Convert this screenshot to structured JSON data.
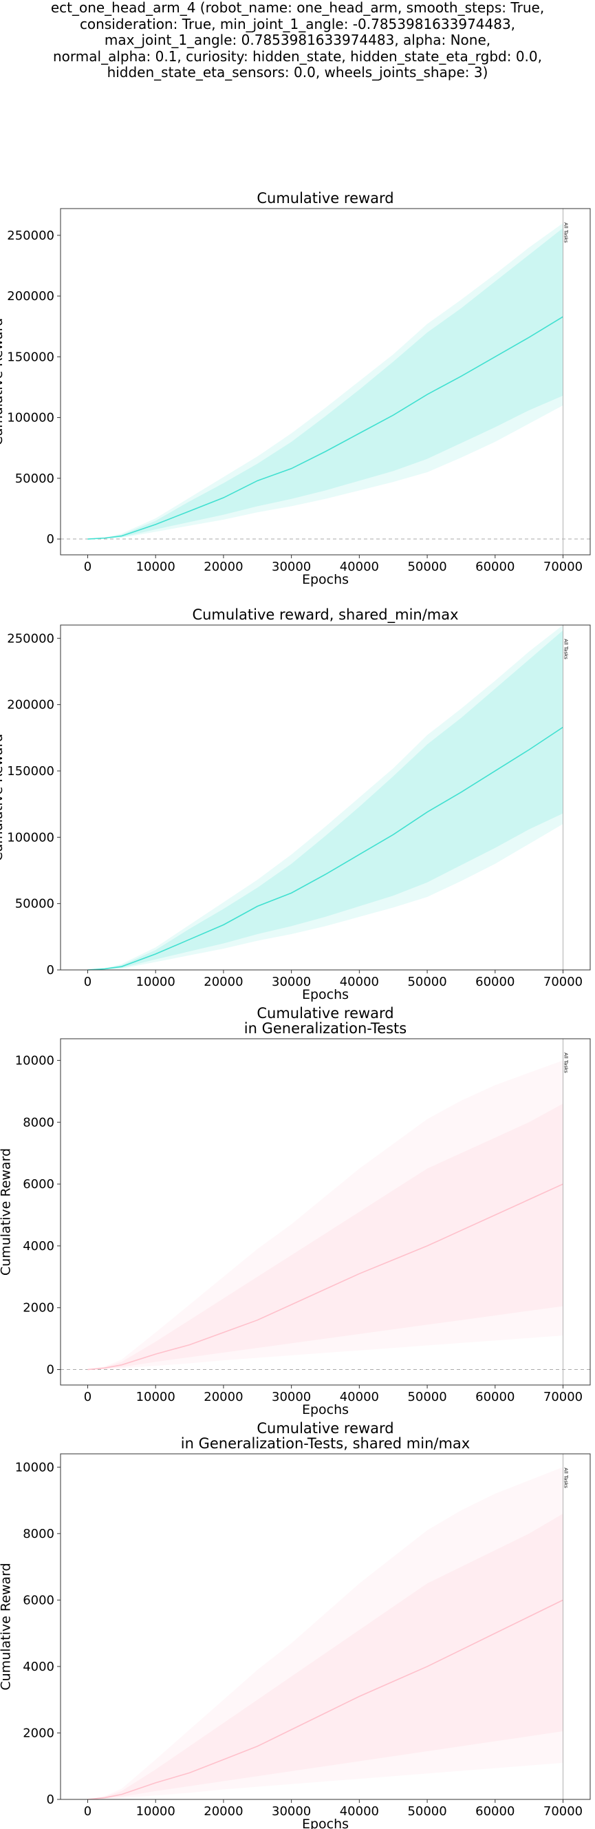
{
  "figure": {
    "header_lines": [
      "ect_one_head_arm_4 (robot_name: one_head_arm, smooth_steps: True,",
      "consideration: True, min_joint_1_angle: -0.7853981633974483,",
      "max_joint_1_angle: 0.7853981633974483, alpha: None,",
      "normal_alpha: 0.1, curiosity: hidden_state, hidden_state_eta_rgbd: 0.0,",
      "hidden_state_eta_sensors: 0.0, wheels_joints_shape: 3)"
    ]
  },
  "chart_data": [
    {
      "type": "area",
      "title_lines": [
        "Cumulative reward"
      ],
      "xlabel": "Epochs",
      "ylabel": "Cumulative Reward",
      "xlim": [
        -4000,
        74000
      ],
      "ylim": [
        -13000,
        272000
      ],
      "xticks": [
        0,
        10000,
        20000,
        30000,
        40000,
        50000,
        60000,
        70000
      ],
      "yticks": [
        0,
        50000,
        100000,
        150000,
        200000,
        250000
      ],
      "color": "#40e0d0",
      "zero_line": true,
      "vline": {
        "x": 70000,
        "label": "All Tasks"
      },
      "series": [
        {
          "x": [
            0,
            2500,
            5000,
            10000,
            15000,
            20000,
            25000,
            30000,
            35000,
            40000,
            45000,
            50000,
            55000,
            60000,
            65000,
            70000
          ],
          "mean": [
            0,
            800,
            2500,
            12000,
            23000,
            34000,
            48000,
            58000,
            72000,
            87000,
            102000,
            119000,
            134000,
            150000,
            166000,
            183000
          ],
          "inner_lower": [
            0,
            500,
            1500,
            8000,
            14000,
            20000,
            27000,
            33000,
            40000,
            48000,
            56000,
            66000,
            79000,
            92000,
            106000,
            118000
          ],
          "inner_upper": [
            0,
            1000,
            3500,
            15000,
            31000,
            46000,
            62000,
            80000,
            101000,
            123000,
            146000,
            170000,
            190000,
            212000,
            234000,
            256000
          ],
          "outer_lower": [
            0,
            300,
            1000,
            6000,
            11000,
            16000,
            22000,
            27000,
            33000,
            40000,
            47000,
            55000,
            67000,
            80000,
            95000,
            110000
          ],
          "outer_upper": [
            0,
            1200,
            4500,
            17000,
            34000,
            51000,
            68000,
            87000,
            108000,
            130000,
            152000,
            177000,
            197000,
            218000,
            240000,
            260000
          ]
        }
      ]
    },
    {
      "type": "area",
      "title_lines": [
        "Cumulative reward, shared_min/max"
      ],
      "xlabel": "Epochs",
      "ylabel": "Cumulative Reward",
      "xlim": [
        -4000,
        74000
      ],
      "ylim": [
        0,
        260000
      ],
      "xticks": [
        0,
        10000,
        20000,
        30000,
        40000,
        50000,
        60000,
        70000
      ],
      "yticks": [
        0,
        50000,
        100000,
        150000,
        200000,
        250000
      ],
      "color": "#40e0d0",
      "zero_line": false,
      "vline": {
        "x": 70000,
        "label": "All Tasks"
      },
      "series": [
        {
          "x": [
            0,
            2500,
            5000,
            10000,
            15000,
            20000,
            25000,
            30000,
            35000,
            40000,
            45000,
            50000,
            55000,
            60000,
            65000,
            70000
          ],
          "mean": [
            0,
            800,
            2500,
            12000,
            23000,
            34000,
            48000,
            58000,
            72000,
            87000,
            102000,
            119000,
            134000,
            150000,
            166000,
            183000
          ],
          "inner_lower": [
            0,
            500,
            1500,
            8000,
            14000,
            20000,
            27000,
            33000,
            40000,
            48000,
            56000,
            66000,
            79000,
            92000,
            106000,
            118000
          ],
          "inner_upper": [
            0,
            1000,
            3500,
            15000,
            31000,
            46000,
            62000,
            80000,
            101000,
            123000,
            146000,
            170000,
            190000,
            212000,
            234000,
            256000
          ],
          "outer_lower": [
            0,
            300,
            1000,
            6000,
            11000,
            16000,
            22000,
            27000,
            33000,
            40000,
            47000,
            55000,
            67000,
            80000,
            95000,
            110000
          ],
          "outer_upper": [
            0,
            1200,
            4500,
            17000,
            34000,
            51000,
            68000,
            87000,
            108000,
            130000,
            152000,
            177000,
            197000,
            218000,
            240000,
            260000
          ]
        }
      ]
    },
    {
      "type": "area",
      "title_lines": [
        "Cumulative reward",
        "in Generalization-Tests"
      ],
      "xlabel": "Epochs",
      "ylabel": "Cumulative Reward",
      "xlim": [
        -4000,
        74000
      ],
      "ylim": [
        -500,
        10700
      ],
      "xticks": [
        0,
        10000,
        20000,
        30000,
        40000,
        50000,
        60000,
        70000
      ],
      "yticks": [
        0,
        2000,
        4000,
        6000,
        8000,
        10000
      ],
      "color": "#ffc0cb",
      "zero_line": true,
      "vline": {
        "x": 70000,
        "label": "All Tasks"
      },
      "series": [
        {
          "x": [
            0,
            2500,
            5000,
            10000,
            15000,
            20000,
            25000,
            30000,
            35000,
            40000,
            45000,
            50000,
            55000,
            60000,
            65000,
            70000
          ],
          "mean": [
            0,
            50,
            150,
            500,
            800,
            1200,
            1600,
            2100,
            2600,
            3100,
            3550,
            4000,
            4500,
            5000,
            5500,
            6000
          ],
          "inner_lower": [
            0,
            30,
            80,
            250,
            400,
            550,
            700,
            850,
            1000,
            1150,
            1300,
            1450,
            1600,
            1750,
            1900,
            2050
          ],
          "inner_upper": [
            0,
            80,
            250,
            900,
            1600,
            2300,
            3000,
            3700,
            4400,
            5100,
            5800,
            6500,
            7000,
            7500,
            8000,
            8600
          ],
          "outer_lower": [
            0,
            15,
            40,
            120,
            200,
            300,
            380,
            460,
            540,
            620,
            700,
            780,
            860,
            940,
            1020,
            1100
          ],
          "outer_upper": [
            0,
            100,
            320,
            1200,
            2100,
            3000,
            3900,
            4700,
            5600,
            6500,
            7300,
            8100,
            8700,
            9200,
            9600,
            10000
          ]
        }
      ]
    },
    {
      "type": "area",
      "title_lines": [
        "Cumulative reward",
        "in Generalization-Tests, shared min/max"
      ],
      "xlabel": "Epochs",
      "ylabel": "Cumulative Reward",
      "xlim": [
        -4000,
        74000
      ],
      "ylim": [
        0,
        10400
      ],
      "xticks": [
        0,
        10000,
        20000,
        30000,
        40000,
        50000,
        60000,
        70000
      ],
      "yticks": [
        0,
        2000,
        4000,
        6000,
        8000,
        10000
      ],
      "color": "#ffc0cb",
      "zero_line": false,
      "vline": {
        "x": 70000,
        "label": "All Tasks"
      },
      "series": [
        {
          "x": [
            0,
            2500,
            5000,
            10000,
            15000,
            20000,
            25000,
            30000,
            35000,
            40000,
            45000,
            50000,
            55000,
            60000,
            65000,
            70000
          ],
          "mean": [
            0,
            50,
            150,
            500,
            800,
            1200,
            1600,
            2100,
            2600,
            3100,
            3550,
            4000,
            4500,
            5000,
            5500,
            6000
          ],
          "inner_lower": [
            0,
            30,
            80,
            250,
            400,
            550,
            700,
            850,
            1000,
            1150,
            1300,
            1450,
            1600,
            1750,
            1900,
            2050
          ],
          "inner_upper": [
            0,
            80,
            250,
            900,
            1600,
            2300,
            3000,
            3700,
            4400,
            5100,
            5800,
            6500,
            7000,
            7500,
            8000,
            8600
          ],
          "outer_lower": [
            0,
            15,
            40,
            120,
            200,
            300,
            380,
            460,
            540,
            620,
            700,
            780,
            860,
            940,
            1020,
            1100
          ],
          "outer_upper": [
            0,
            100,
            320,
            1200,
            2100,
            3000,
            3900,
            4700,
            5600,
            6500,
            7300,
            8100,
            8700,
            9200,
            9600,
            10000
          ]
        }
      ]
    }
  ]
}
